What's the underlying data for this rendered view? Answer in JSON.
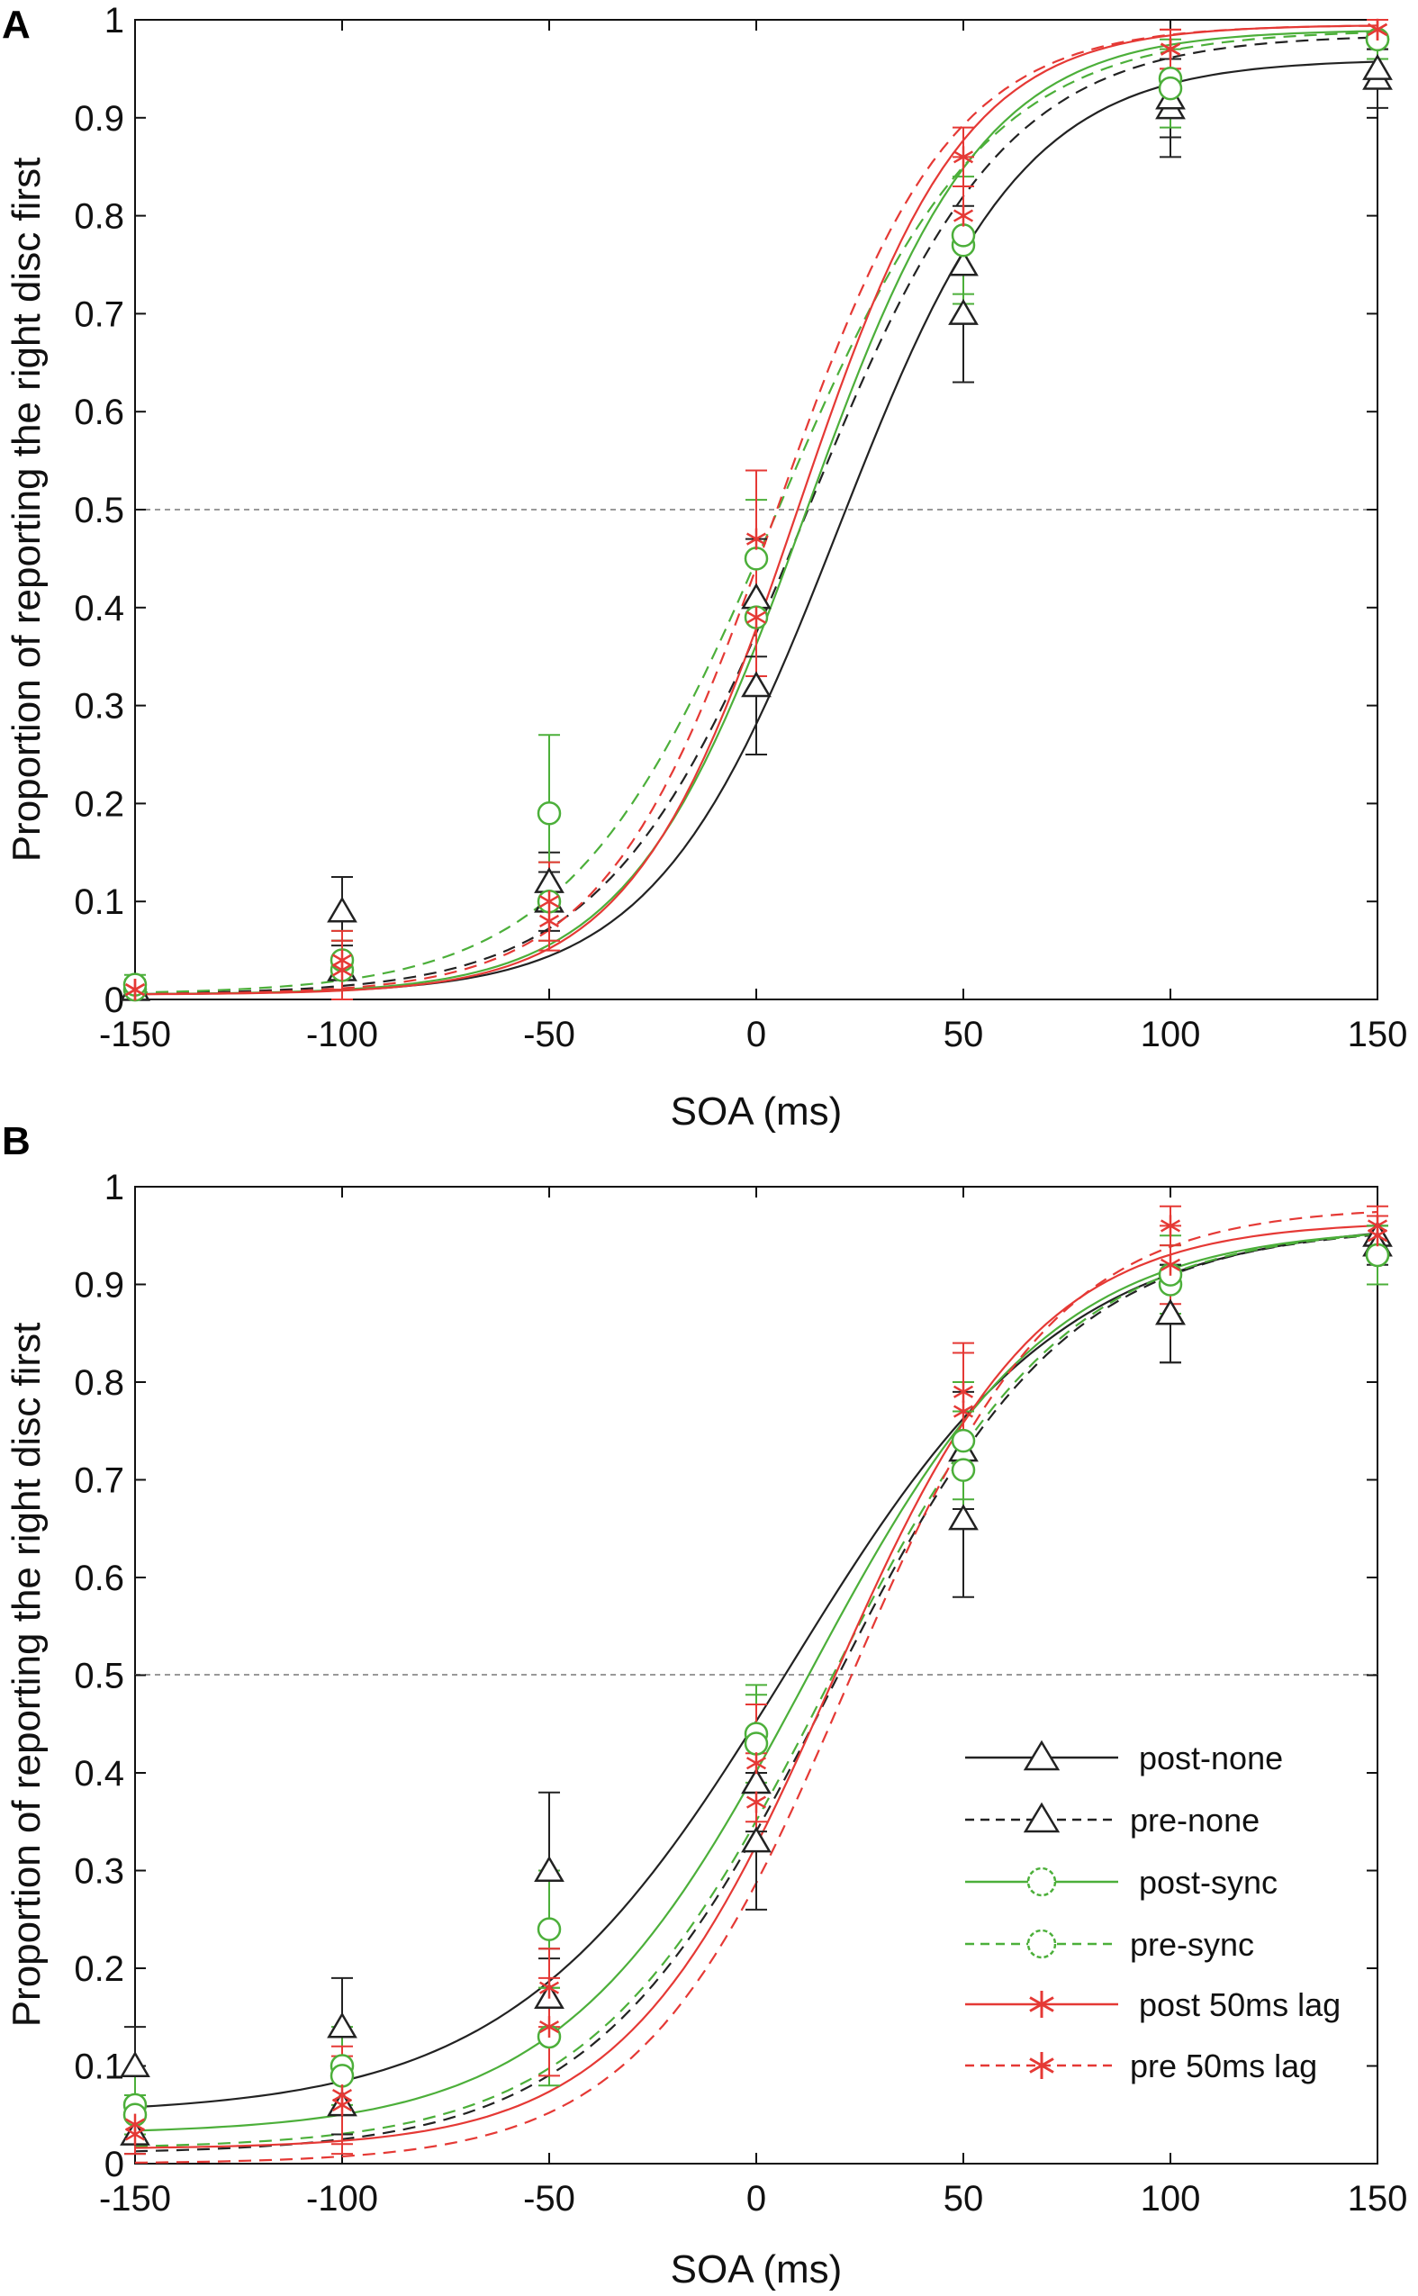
{
  "chart_data": [
    {
      "panel": "A",
      "type": "line",
      "xlabel": "SOA (ms)",
      "ylabel": "Proportion of reporting the right disc first",
      "x": [
        -150,
        -100,
        -50,
        0,
        50,
        100,
        150
      ],
      "xticks": [
        "-150",
        "-100",
        "-50",
        "0",
        "50",
        "100",
        "150"
      ],
      "yticks": [
        "0",
        "0.1",
        "0.2",
        "0.3",
        "0.4",
        "0.5",
        "0.6",
        "0.7",
        "0.8",
        "0.9",
        "1"
      ],
      "xlim": [
        -150,
        150
      ],
      "ylim": [
        0,
        1
      ],
      "reference_line": 0.5,
      "series": [
        {
          "name": "post-none",
          "color": "#222222",
          "dash": false,
          "marker": "triangle",
          "pse": 20,
          "slope": 0.045,
          "lower": 0.005,
          "upper": 0.96,
          "values": [
            0.01,
            0.03,
            0.1,
            0.32,
            0.7,
            0.91,
            0.94
          ],
          "err": [
            0.01,
            0.03,
            0.03,
            0.07,
            0.07,
            0.05,
            0.03
          ]
        },
        {
          "name": "pre-none",
          "color": "#222222",
          "dash": true,
          "marker": "triangle",
          "pse": 12,
          "slope": 0.042,
          "lower": 0.005,
          "upper": 0.985,
          "values": [
            0.01,
            0.09,
            0.12,
            0.41,
            0.75,
            0.92,
            0.95
          ],
          "err": [
            0.01,
            0.035,
            0.03,
            0.06,
            0.06,
            0.04,
            0.02
          ]
        },
        {
          "name": "post-sync",
          "color": "#4caf3a",
          "dash": false,
          "marker": "circle",
          "pse": 12,
          "slope": 0.047,
          "lower": 0.005,
          "upper": 0.99,
          "values": [
            0.01,
            0.03,
            0.1,
            0.39,
            0.77,
            0.94,
            0.98
          ],
          "err": [
            0.01,
            0.03,
            0.04,
            0.06,
            0.06,
            0.04,
            0.02
          ]
        },
        {
          "name": "pre-sync",
          "color": "#4caf3a",
          "dash": true,
          "marker": "circle",
          "pse": 5,
          "slope": 0.04,
          "lower": 0.005,
          "upper": 0.99,
          "values": [
            0.015,
            0.04,
            0.19,
            0.45,
            0.78,
            0.93,
            0.98
          ],
          "err": [
            0.01,
            0.03,
            0.08,
            0.06,
            0.06,
            0.04,
            0.02
          ]
        },
        {
          "name": "post 50ms lag",
          "color": "#e53935",
          "dash": false,
          "marker": "asterisk",
          "pse": 10,
          "slope": 0.05,
          "lower": 0.005,
          "upper": 0.995,
          "values": [
            0.01,
            0.04,
            0.08,
            0.39,
            0.8,
            0.97,
            0.99
          ],
          "err": [
            0.01,
            0.03,
            0.03,
            0.06,
            0.06,
            0.02,
            0.01
          ]
        },
        {
          "name": "pre 50ms lag",
          "color": "#e53935",
          "dash": true,
          "marker": "asterisk",
          "pse": 5,
          "slope": 0.048,
          "lower": 0.005,
          "upper": 0.995,
          "values": [
            0.01,
            0.03,
            0.1,
            0.47,
            0.86,
            0.97,
            0.99
          ],
          "err": [
            0.01,
            0.03,
            0.04,
            0.07,
            0.03,
            0.02,
            0.01
          ]
        }
      ]
    },
    {
      "panel": "B",
      "type": "line",
      "xlabel": "SOA (ms)",
      "ylabel": "Proportion of reporting the right disc first",
      "x": [
        -150,
        -100,
        -50,
        0,
        50,
        100,
        150
      ],
      "xticks": [
        "-150",
        "-100",
        "-50",
        "0",
        "50",
        "100",
        "150"
      ],
      "yticks": [
        "0",
        "0.1",
        "0.2",
        "0.3",
        "0.4",
        "0.5",
        "0.6",
        "0.7",
        "0.8",
        "0.9",
        "1"
      ],
      "xlim": [
        -150,
        150
      ],
      "ylim": [
        0,
        1
      ],
      "reference_line": 0.5,
      "legend_position": "bottom-right",
      "series": [
        {
          "name": "post-none",
          "color": "#222222",
          "dash": false,
          "marker": "triangle",
          "pse": 8,
          "slope": 0.03,
          "lower": 0.05,
          "upper": 0.965,
          "values": [
            0.1,
            0.14,
            0.3,
            0.33,
            0.66,
            0.87,
            0.95
          ],
          "err": [
            0.04,
            0.05,
            0.08,
            0.07,
            0.08,
            0.05,
            0.02
          ]
        },
        {
          "name": "pre-none",
          "color": "#222222",
          "dash": true,
          "marker": "triangle",
          "pse": 18,
          "slope": 0.035,
          "lower": 0.01,
          "upper": 0.96,
          "values": [
            0.03,
            0.06,
            0.17,
            0.39,
            0.73,
            0.87,
            0.94
          ],
          "err": [
            0.02,
            0.03,
            0.04,
            0.05,
            0.06,
            0.05,
            0.02
          ]
        },
        {
          "name": "post-sync",
          "color": "#4caf3a",
          "dash": false,
          "marker": "circle",
          "pse": 12,
          "slope": 0.034,
          "lower": 0.03,
          "upper": 0.96,
          "values": [
            0.06,
            0.1,
            0.24,
            0.44,
            0.71,
            0.9,
            0.93
          ],
          "err": [
            0.03,
            0.04,
            0.06,
            0.05,
            0.06,
            0.04,
            0.03
          ]
        },
        {
          "name": "pre-sync",
          "color": "#4caf3a",
          "dash": true,
          "marker": "circle",
          "pse": 17,
          "slope": 0.035,
          "lower": 0.015,
          "upper": 0.96,
          "values": [
            0.05,
            0.09,
            0.13,
            0.43,
            0.74,
            0.91,
            0.93
          ],
          "err": [
            0.02,
            0.04,
            0.05,
            0.05,
            0.06,
            0.04,
            0.03
          ]
        },
        {
          "name": "post 50ms lag",
          "color": "#e53935",
          "dash": false,
          "marker": "asterisk",
          "pse": 18,
          "slope": 0.04,
          "lower": 0.015,
          "upper": 0.965,
          "values": [
            0.04,
            0.07,
            0.18,
            0.41,
            0.79,
            0.92,
            0.95
          ],
          "err": [
            0.02,
            0.05,
            0.04,
            0.06,
            0.05,
            0.04,
            0.02
          ]
        },
        {
          "name": "pre 50ms lag",
          "color": "#e53935",
          "dash": true,
          "marker": "asterisk",
          "pse": 22,
          "slope": 0.04,
          "lower": 0.0,
          "upper": 0.98,
          "values": [
            0.03,
            0.06,
            0.14,
            0.37,
            0.77,
            0.96,
            0.96
          ],
          "err": [
            0.02,
            0.05,
            0.05,
            0.05,
            0.06,
            0.02,
            0.02
          ]
        }
      ]
    }
  ]
}
